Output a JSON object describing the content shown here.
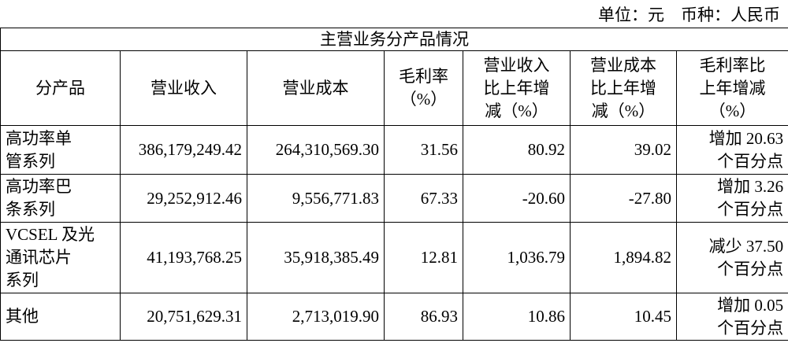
{
  "unit_line": "单位：元　币种：人民币",
  "table": {
    "title": "主营业务分产品情况",
    "header": [
      [
        "分产品"
      ],
      [
        "营业收入"
      ],
      [
        "营业成本"
      ],
      [
        "毛利率",
        "（%）"
      ],
      [
        "营业收入",
        "比上年增",
        "减（%）"
      ],
      [
        "营业成本",
        "比上年增",
        "减（%）"
      ],
      [
        "毛利率比",
        "上年增减",
        "（%）"
      ]
    ],
    "rows": [
      [
        [
          "高功率单",
          "管系列"
        ],
        [
          "386,179,249.42"
        ],
        [
          "264,310,569.30"
        ],
        [
          "31.56"
        ],
        [
          "80.92"
        ],
        [
          "39.02"
        ],
        [
          "增加 20.63",
          "个百分点"
        ]
      ],
      [
        [
          "高功率巴",
          "条系列"
        ],
        [
          "29,252,912.46"
        ],
        [
          "9,556,771.83"
        ],
        [
          "67.33"
        ],
        [
          "-20.60"
        ],
        [
          "-27.80"
        ],
        [
          "增加 3.26",
          "个百分点"
        ]
      ],
      [
        [
          "VCSEL 及光",
          "通讯芯片",
          "系列"
        ],
        [
          "41,193,768.25"
        ],
        [
          "35,918,385.49"
        ],
        [
          "12.81"
        ],
        [
          "1,036.79"
        ],
        [
          "1,894.82"
        ],
        [
          "减少 37.50",
          "个百分点"
        ]
      ],
      [
        [
          "其他"
        ],
        [
          "20,751,629.31"
        ],
        [
          "2,713,019.90"
        ],
        [
          "86.93"
        ],
        [
          "10.86"
        ],
        [
          "10.45"
        ],
        [
          "增加 0.05",
          "个百分点"
        ]
      ]
    ]
  }
}
